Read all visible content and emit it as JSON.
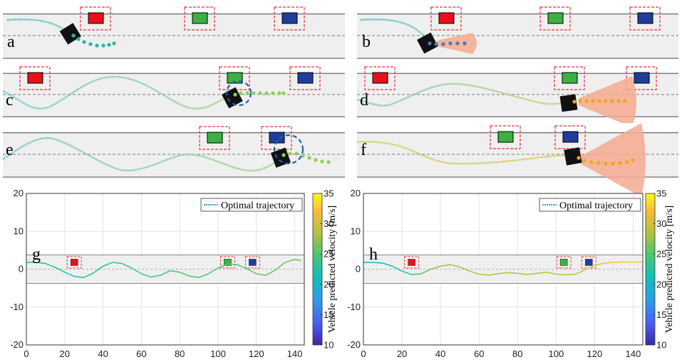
{
  "sim_panels": [
    {
      "label": "a",
      "prediction": "none"
    },
    {
      "label": "b",
      "prediction": "cone"
    },
    {
      "label": "c",
      "prediction": "circle"
    },
    {
      "label": "d",
      "prediction": "cone"
    },
    {
      "label": "e",
      "prediction": "circle"
    },
    {
      "label": "f",
      "prediction": "cone"
    }
  ],
  "obstacle_colors": {
    "red": "#e8101a",
    "green": "#3cb043",
    "blue": "#1f3d99",
    "box": "#e0343e"
  },
  "cone_color": "#f4a98f",
  "chart_data": [
    {
      "type": "line",
      "label": "g",
      "xlim": [
        0,
        145
      ],
      "ylim": [
        -20,
        20
      ],
      "xticks": [
        0,
        20,
        40,
        60,
        80,
        100,
        120,
        140
      ],
      "yticks": [
        -20,
        -10,
        0,
        10,
        20
      ],
      "legend": "Optimal trajectory",
      "colorbar": {
        "label": "Vehicle predicted velocity [m/s]",
        "min": 10,
        "max": 35,
        "ticks": [
          10,
          15,
          20,
          25,
          30,
          35
        ]
      },
      "road": {
        "y_min": -3.75,
        "y_max": 3.75
      },
      "obstacles": [
        {
          "x": 25,
          "y": 1.8,
          "color": "red"
        },
        {
          "x": 105,
          "y": 1.8,
          "color": "green"
        },
        {
          "x": 118,
          "y": 1.8,
          "color": "blue"
        }
      ],
      "series": [
        {
          "name": "trajectory",
          "x": [
            0,
            5,
            10,
            15,
            20,
            25,
            30,
            35,
            40,
            45,
            50,
            55,
            60,
            65,
            70,
            75,
            80,
            85,
            90,
            95,
            100,
            105,
            110,
            115,
            120,
            125,
            130,
            135,
            140,
            143
          ],
          "y": [
            1.8,
            1.8,
            1.5,
            0.5,
            -0.8,
            -1.9,
            -2.2,
            -1.0,
            0.8,
            1.8,
            1.5,
            0.3,
            -1.2,
            -2.1,
            -1.6,
            -0.4,
            -0.8,
            -1.8,
            -2.2,
            -1.2,
            0.3,
            1.4,
            1.2,
            0.1,
            -1.2,
            -1.6,
            -0.2,
            1.8,
            2.6,
            2.3
          ],
          "v": [
            22,
            22,
            22,
            22,
            22,
            22,
            22,
            22,
            22.5,
            23,
            23.5,
            24,
            24,
            24,
            24,
            24.5,
            24.5,
            25,
            25,
            25,
            25,
            25,
            25,
            25.5,
            25.5,
            25.5,
            26,
            26,
            26,
            26
          ]
        }
      ]
    },
    {
      "type": "line",
      "label": "h",
      "xlim": [
        0,
        145
      ],
      "ylim": [
        -20,
        20
      ],
      "xticks": [
        0,
        20,
        40,
        60,
        80,
        100,
        120,
        140
      ],
      "yticks": [
        -20,
        -10,
        0,
        10,
        20
      ],
      "legend": "Optimal trajectory",
      "colorbar": {
        "label": "Vehicle predicted velocity [m/s]",
        "min": 10,
        "max": 35,
        "ticks": [
          10,
          15,
          20,
          25,
          30,
          35
        ]
      },
      "road": {
        "y_min": -3.75,
        "y_max": 3.75
      },
      "obstacles": [
        {
          "x": 25,
          "y": 1.8,
          "color": "red"
        },
        {
          "x": 104,
          "y": 1.8,
          "color": "green"
        },
        {
          "x": 117,
          "y": 1.8,
          "color": "blue"
        }
      ],
      "series": [
        {
          "name": "trajectory",
          "x": [
            0,
            5,
            10,
            15,
            20,
            25,
            30,
            35,
            40,
            45,
            50,
            55,
            60,
            65,
            70,
            75,
            80,
            85,
            90,
            95,
            100,
            105,
            110,
            115,
            120,
            125,
            130,
            135,
            140,
            145
          ],
          "y": [
            1.8,
            1.8,
            1.6,
            0.8,
            -0.5,
            -1.4,
            -1.2,
            0.0,
            0.8,
            1.2,
            0.6,
            -0.5,
            -1.3,
            -1.6,
            -1.2,
            -0.9,
            -1.1,
            -1.4,
            -1.1,
            -0.8,
            -1.3,
            -1.5,
            -1.3,
            -0.2,
            1.0,
            1.6,
            1.8,
            1.9,
            1.9,
            1.9
          ],
          "v": [
            20,
            20,
            20.5,
            21,
            22,
            23.5,
            25,
            26.5,
            27.5,
            28,
            28.5,
            28.5,
            28.5,
            28.5,
            28.5,
            28.5,
            28.5,
            29,
            29,
            29,
            29,
            29,
            29.5,
            30,
            31,
            32,
            32.5,
            33,
            33,
            33
          ]
        }
      ]
    }
  ]
}
